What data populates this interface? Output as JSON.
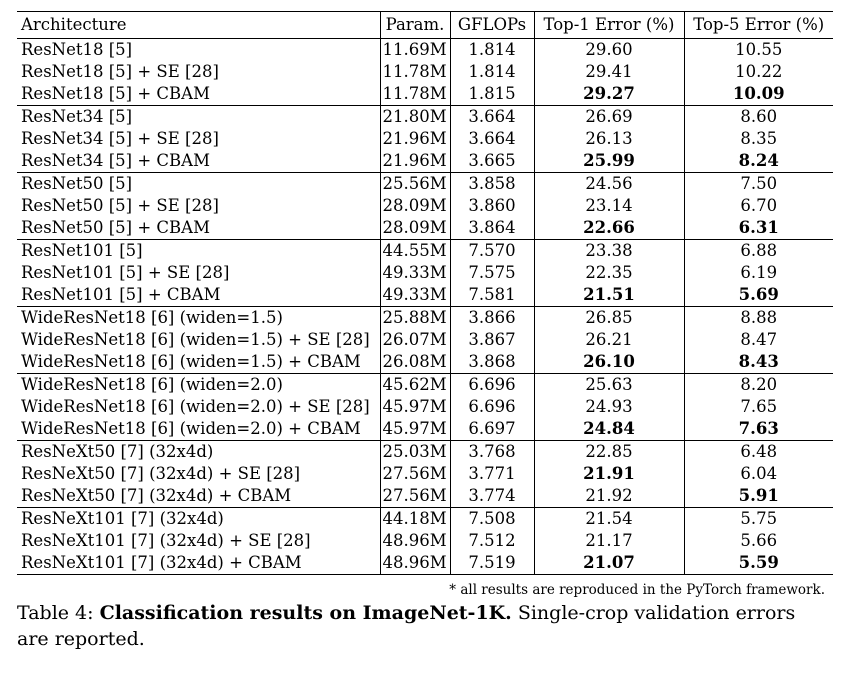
{
  "table": {
    "headers": [
      "Architecture",
      "Param.",
      "GFLOPs",
      "Top-1 Error (%)",
      "Top-5 Error (%)"
    ],
    "groups": [
      [
        {
          "arch": "ResNet18 [5]",
          "param": "11.69M",
          "gflops": "1.814",
          "top1": "29.60",
          "top5": "10.55",
          "best1": false,
          "best5": false
        },
        {
          "arch": "ResNet18 [5] + SE [28]",
          "param": "11.78M",
          "gflops": "1.814",
          "top1": "29.41",
          "top5": "10.22",
          "best1": false,
          "best5": false
        },
        {
          "arch": "ResNet18 [5] + CBAM",
          "param": "11.78M",
          "gflops": "1.815",
          "top1": "29.27",
          "top5": "10.09",
          "best1": true,
          "best5": true
        }
      ],
      [
        {
          "arch": "ResNet34 [5]",
          "param": "21.80M",
          "gflops": "3.664",
          "top1": "26.69",
          "top5": "8.60",
          "best1": false,
          "best5": false
        },
        {
          "arch": "ResNet34 [5] + SE [28]",
          "param": "21.96M",
          "gflops": "3.664",
          "top1": "26.13",
          "top5": "8.35",
          "best1": false,
          "best5": false
        },
        {
          "arch": "ResNet34 [5] + CBAM",
          "param": "21.96M",
          "gflops": "3.665",
          "top1": "25.99",
          "top5": "8.24",
          "best1": true,
          "best5": true
        }
      ],
      [
        {
          "arch": "ResNet50 [5]",
          "param": "25.56M",
          "gflops": "3.858",
          "top1": "24.56",
          "top5": "7.50",
          "best1": false,
          "best5": false
        },
        {
          "arch": "ResNet50 [5] + SE [28]",
          "param": "28.09M",
          "gflops": "3.860",
          "top1": "23.14",
          "top5": "6.70",
          "best1": false,
          "best5": false
        },
        {
          "arch": "ResNet50 [5] + CBAM",
          "param": "28.09M",
          "gflops": "3.864",
          "top1": "22.66",
          "top5": "6.31",
          "best1": true,
          "best5": true
        }
      ],
      [
        {
          "arch": "ResNet101 [5]",
          "param": "44.55M",
          "gflops": "7.570",
          "top1": "23.38",
          "top5": "6.88",
          "best1": false,
          "best5": false
        },
        {
          "arch": "ResNet101 [5] + SE [28]",
          "param": "49.33M",
          "gflops": "7.575",
          "top1": "22.35",
          "top5": "6.19",
          "best1": false,
          "best5": false
        },
        {
          "arch": "ResNet101 [5] + CBAM",
          "param": "49.33M",
          "gflops": "7.581",
          "top1": "21.51",
          "top5": "5.69",
          "best1": true,
          "best5": true
        }
      ],
      [
        {
          "arch": "WideResNet18 [6] (widen=1.5)",
          "param": "25.88M",
          "gflops": "3.866",
          "top1": "26.85",
          "top5": "8.88",
          "best1": false,
          "best5": false
        },
        {
          "arch": "WideResNet18 [6] (widen=1.5) + SE [28]",
          "param": "26.07M",
          "gflops": "3.867",
          "top1": "26.21",
          "top5": "8.47",
          "best1": false,
          "best5": false
        },
        {
          "arch": "WideResNet18 [6] (widen=1.5) + CBAM",
          "param": "26.08M",
          "gflops": "3.868",
          "top1": "26.10",
          "top5": "8.43",
          "best1": true,
          "best5": true
        }
      ],
      [
        {
          "arch": "WideResNet18 [6] (widen=2.0)",
          "param": "45.62M",
          "gflops": "6.696",
          "top1": "25.63",
          "top5": "8.20",
          "best1": false,
          "best5": false
        },
        {
          "arch": "WideResNet18 [6] (widen=2.0) + SE [28]",
          "param": "45.97M",
          "gflops": "6.696",
          "top1": "24.93",
          "top5": "7.65",
          "best1": false,
          "best5": false
        },
        {
          "arch": "WideResNet18 [6] (widen=2.0) + CBAM",
          "param": "45.97M",
          "gflops": "6.697",
          "top1": "24.84",
          "top5": "7.63",
          "best1": true,
          "best5": true
        }
      ],
      [
        {
          "arch": "ResNeXt50 [7] (32x4d)",
          "param": "25.03M",
          "gflops": "3.768",
          "top1": "22.85",
          "top5": "6.48",
          "best1": false,
          "best5": false
        },
        {
          "arch": "ResNeXt50 [7] (32x4d) + SE [28]",
          "param": "27.56M",
          "gflops": "3.771",
          "top1": "21.91",
          "top5": "6.04",
          "best1": true,
          "best5": false
        },
        {
          "arch": "ResNeXt50 [7] (32x4d) + CBAM",
          "param": "27.56M",
          "gflops": "3.774",
          "top1": "21.92",
          "top5": "5.91",
          "best1": false,
          "best5": true
        }
      ],
      [
        {
          "arch": "ResNeXt101 [7] (32x4d)",
          "param": "44.18M",
          "gflops": "7.508",
          "top1": "21.54",
          "top5": "5.75",
          "best1": false,
          "best5": false
        },
        {
          "arch": "ResNeXt101 [7] (32x4d) + SE [28]",
          "param": "48.96M",
          "gflops": "7.512",
          "top1": "21.17",
          "top5": "5.66",
          "best1": false,
          "best5": false
        },
        {
          "arch": "ResNeXt101 [7] (32x4d) + CBAM",
          "param": "48.96M",
          "gflops": "7.519",
          "top1": "21.07",
          "top5": "5.59",
          "best1": true,
          "best5": true
        }
      ]
    ]
  },
  "note": "* all results are reproduced in the PyTorch framework.",
  "caption": {
    "label": "Table 4: ",
    "title": "Classification results on ImageNet-1K.",
    "text": " Single-crop validation errors are reported."
  }
}
